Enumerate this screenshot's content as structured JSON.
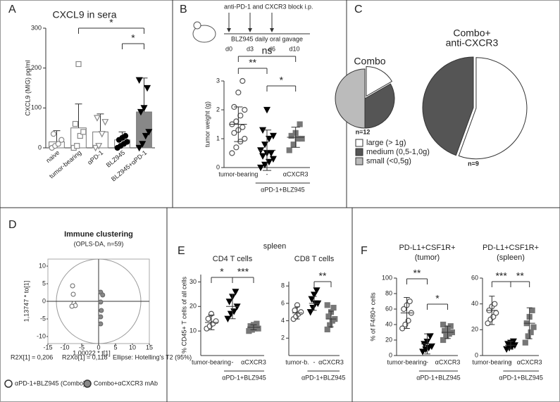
{
  "chart_data": [
    {
      "type": "bar",
      "panel": "A",
      "title": "CXCL9 in sera",
      "ylabel": "CXCL9 (MIG) pg/ml",
      "categories": [
        "naive",
        "tumor-bearing",
        "αPD-1",
        "BLZ945",
        "BLZ945+αPD-1"
      ],
      "groups": [
        {
          "marker": "circle",
          "open": true,
          "color": "#888",
          "bar_color": "#fff",
          "points": [
            0,
            5,
            10,
            20,
            35
          ],
          "mean": 15,
          "sd": 28
        },
        {
          "marker": "square",
          "open": true,
          "color": "#888",
          "bar_color": "#fff",
          "points": [
            0,
            5,
            30,
            40,
            60,
            210
          ],
          "mean": 50,
          "sd": 60
        },
        {
          "marker": "triangle",
          "open": true,
          "color": "#888",
          "bar_color": "#fff",
          "points": [
            0,
            5,
            35,
            65,
            75
          ],
          "mean": 40,
          "sd": 45
        },
        {
          "marker": "circle",
          "open": false,
          "color": "#000",
          "bar_color": "#fff",
          "points": [
            0,
            5,
            10,
            15,
            20,
            25,
            30
          ],
          "mean": 20,
          "sd": 20
        },
        {
          "marker": "triangle",
          "open": false,
          "color": "#000",
          "bar_color": "#888",
          "points": [
            0,
            10,
            30,
            40,
            90,
            100,
            150,
            170
          ],
          "mean": 90,
          "sd": 85
        }
      ],
      "ylim": [
        0,
        300
      ],
      "yticks": [
        0,
        100,
        200,
        300
      ],
      "annotations": [
        "*",
        "*"
      ]
    },
    {
      "type": "dotplot",
      "panel": "B",
      "ylabel": "tumor weight (g)",
      "schematic": {
        "top": "anti-PD-1 and CXCR3 block i.p.",
        "bottom": "BLZ945 daily oral gavage",
        "days": [
          "d0",
          "d3",
          "d6",
          "d10"
        ]
      },
      "categories": [
        "tumor-bearing",
        "-",
        "αCXCR3"
      ],
      "group_label": "αPD-1+BLZ945",
      "groups": [
        {
          "marker": "circle",
          "open": true,
          "color": "#555",
          "points": [
            0.5,
            0.7,
            0.9,
            1.0,
            1.2,
            1.3,
            1.4,
            1.5,
            1.6,
            1.8,
            2.0,
            2.1,
            2.6,
            3.0
          ],
          "mean": 1.5,
          "sd": 0.6
        },
        {
          "marker": "triangle",
          "open": false,
          "color": "#000",
          "points": [
            0,
            0.1,
            0.2,
            0.3,
            0.4,
            0.5,
            0.5,
            0.6,
            0.8,
            1.0,
            1.1,
            1.3,
            2.0
          ],
          "mean": 0.6,
          "sd": 0.7
        },
        {
          "marker": "square",
          "open": false,
          "color": "#777",
          "points": [
            0.6,
            0.8,
            1.0,
            1.0,
            1.1,
            1.2,
            1.5
          ],
          "mean": 1.05,
          "sd": 0.35
        }
      ],
      "ylim": [
        0,
        3
      ],
      "yticks": [
        0,
        1,
        2,
        3
      ],
      "annotations": [
        "ns",
        "**",
        "*"
      ]
    },
    {
      "type": "pie",
      "panel": "C",
      "title": [
        "Combo"
      ],
      "categories": [
        "large (> 1g)",
        "medium (0,5-1,0g)",
        "small (<0,5g)"
      ],
      "values": [
        2,
        4,
        6
      ],
      "colors": [
        "#ffffff",
        "#555555",
        "#bbbbbb"
      ],
      "note": "n=12"
    },
    {
      "type": "pie",
      "title": [
        "Combo+",
        "anti-CXCR3"
      ],
      "values": [
        5,
        4,
        0
      ],
      "colors": [
        "#ffffff",
        "#555555",
        "#bbbbbb"
      ],
      "note": "n=9"
    },
    {
      "type": "scatter",
      "panel": "D",
      "title": "Immune clustering",
      "subtitle": "(OPLS-DA, n=59)",
      "xlabel": "1,00022 * t[1]",
      "ylabel": "1,13747 * to[1]",
      "notes": [
        "R2X[1] = 0,206",
        "R2Xo[1] = 0,118",
        "Ellipse: Hotelling's T2 (95%)"
      ],
      "xlim": [
        -15,
        15
      ],
      "ylim": [
        -12,
        12
      ],
      "xticks": [
        -15,
        -10,
        -5,
        0,
        5,
        10,
        15
      ],
      "yticks": [
        -10,
        -5,
        0,
        5,
        10
      ],
      "series": [
        {
          "name": "αPD-1+BLZ945 (Combo)",
          "open": true,
          "color": "#888",
          "x": [
            -7.7,
            -7.5,
            -7.1,
            -7.3,
            -6.9,
            -7.9
          ],
          "values": [
            4.4,
            2,
            -1,
            -0.6,
            -1.2,
            -1.4
          ]
        },
        {
          "name": "Combo+αCXCR3 mAb",
          "open": false,
          "color": "#888",
          "x": [
            0.6,
            1.2,
            0.6,
            0.8,
            0.6,
            0.6
          ],
          "values": [
            2.6,
            1.8,
            -0.2,
            -2.6,
            -4.4,
            -6.4
          ]
        }
      ]
    },
    {
      "type": "dotplot",
      "panel": "E",
      "heading": "spleen",
      "title": [
        "CD4 T cells"
      ],
      "ylabel": "% CD45+ T cells of all cells",
      "categories": [
        "tumor-bearing",
        "-",
        "αCXCR3"
      ],
      "group_label": "αPD-1+BLZ945",
      "groups": [
        {
          "marker": "circle",
          "open": true,
          "color": "#555",
          "points": [
            11,
            12,
            13,
            14,
            15,
            17
          ],
          "mean": 13.5,
          "sd": 3
        },
        {
          "marker": "triangle",
          "open": false,
          "color": "#000",
          "points": [
            15,
            17,
            18,
            20,
            22,
            24,
            26
          ],
          "mean": 20,
          "sd": 5
        },
        {
          "marker": "square",
          "open": false,
          "color": "#777",
          "points": [
            10,
            10.5,
            11,
            11,
            12,
            12.5,
            13
          ],
          "mean": 11.5,
          "sd": 1
        }
      ],
      "ylim": [
        0,
        33
      ],
      "yticks": [
        10,
        20,
        30
      ],
      "annotations": [
        "*",
        "***"
      ]
    },
    {
      "type": "dotplot",
      "title": [
        "CD8 T cells"
      ],
      "categories": [
        "tumor-b.",
        "-",
        "αCXCR3"
      ],
      "group_label": "αPD-1+BLZ945",
      "groups": [
        {
          "marker": "circle",
          "open": true,
          "color": "#555",
          "points": [
            4.2,
            4.5,
            4.8,
            5,
            5.2,
            5.8
          ],
          "mean": 4.9,
          "sd": 0.7
        },
        {
          "marker": "triangle",
          "open": false,
          "color": "#000",
          "points": [
            5,
            5.5,
            6,
            6,
            6.5,
            7,
            7.5
          ],
          "mean": 6,
          "sd": 0.8
        },
        {
          "marker": "square",
          "open": false,
          "color": "#777",
          "points": [
            3,
            3.5,
            4,
            4.2,
            4.5,
            5,
            5.5,
            5.8
          ],
          "mean": 4.2,
          "sd": 0.9
        }
      ],
      "ylim": [
        0,
        8.5
      ],
      "yticks": [
        2,
        4,
        6,
        8
      ],
      "annotations": [
        "**"
      ]
    },
    {
      "type": "dotplot",
      "panel": "F",
      "title": [
        "PD-L1+CSF1R+",
        "(tumor)"
      ],
      "ylabel": "% of F4/80+ cells",
      "categories": [
        "tumor-bearing",
        "-",
        "αCXCR3"
      ],
      "group_label": "αPD-1+BLZ945",
      "groups": [
        {
          "marker": "circle",
          "open": true,
          "color": "#555",
          "points": [
            35,
            40,
            45,
            55,
            60,
            65,
            70
          ],
          "mean": 55,
          "sd": 20
        },
        {
          "marker": "triangle",
          "open": false,
          "color": "#000",
          "points": [
            5,
            8,
            10,
            12,
            15,
            18,
            25
          ],
          "mean": 15,
          "sd": 13
        },
        {
          "marker": "square",
          "open": false,
          "color": "#777",
          "points": [
            20,
            25,
            28,
            30,
            32,
            35,
            38,
            40
          ],
          "mean": 30,
          "sd": 8
        }
      ],
      "ylim": [
        0,
        100
      ],
      "yticks": [
        0,
        20,
        40,
        60,
        80,
        100
      ],
      "annotations": [
        "**",
        "*"
      ]
    },
    {
      "type": "dotplot",
      "title": [
        "PD-L1+CSF1R+",
        "(spleen)"
      ],
      "categories": [
        "tumor-bearing",
        "-",
        "αCXCR3"
      ],
      "group_label": "αPD-1+BLZ945",
      "groups": [
        {
          "marker": "circle",
          "open": true,
          "color": "#555",
          "points": [
            25,
            28,
            30,
            33,
            35,
            38,
            40
          ],
          "mean": 35,
          "sd": 11
        },
        {
          "marker": "triangle",
          "open": false,
          "color": "#000",
          "points": [
            5,
            6,
            7,
            8,
            9,
            10,
            11
          ],
          "mean": 8,
          "sd": 3
        },
        {
          "marker": "square",
          "open": false,
          "color": "#777",
          "points": [
            10,
            15,
            18,
            22,
            25,
            30,
            35
          ],
          "mean": 25,
          "sd": 12
        }
      ],
      "ylim": [
        0,
        60
      ],
      "yticks": [
        0,
        20,
        40,
        60
      ],
      "annotations": [
        "***",
        "**"
      ]
    }
  ]
}
